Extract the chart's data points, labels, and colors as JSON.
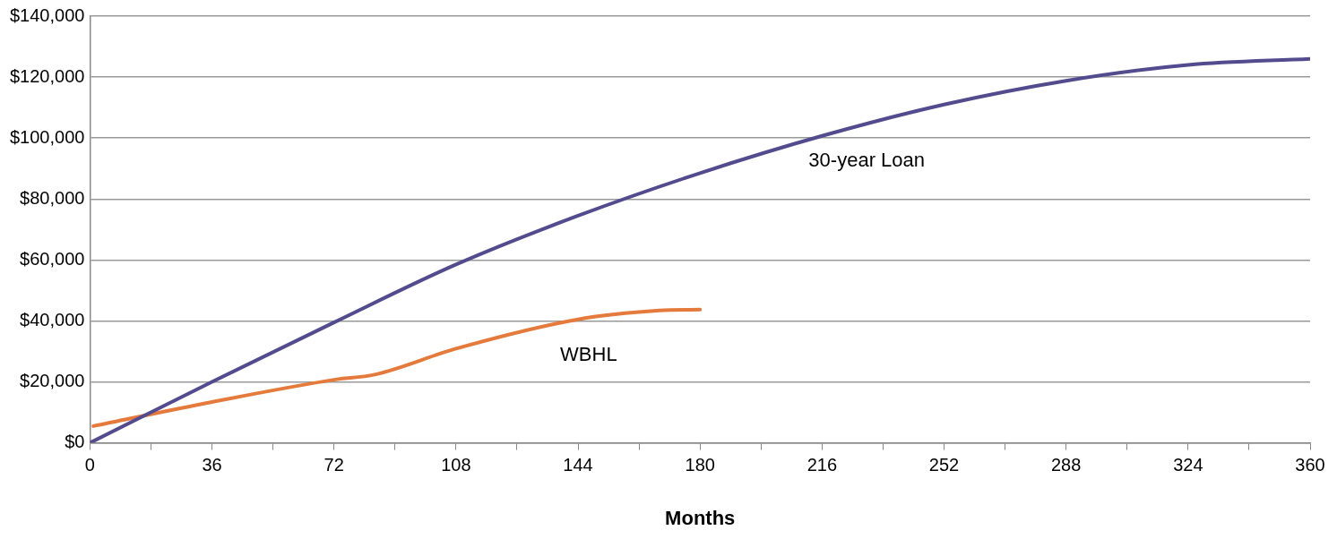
{
  "chart_data": {
    "type": "line",
    "xlabel": "Months",
    "xlim": [
      0,
      360
    ],
    "xticks": [
      0,
      {
        "value": 18,
        "label": null
      },
      36,
      {
        "value": 54,
        "label": null
      },
      72,
      {
        "value": 90,
        "label": null
      },
      108,
      {
        "value": 126,
        "label": null
      },
      144,
      {
        "value": 162,
        "label": null
      },
      180,
      {
        "value": 198,
        "label": null
      },
      216,
      {
        "value": 234,
        "label": null
      },
      252,
      {
        "value": 270,
        "label": null
      },
      288,
      {
        "value": 306,
        "label": null
      },
      324,
      {
        "value": 342,
        "label": null
      },
      360
    ],
    "ylim": [
      0,
      140000
    ],
    "yticks": [
      {
        "value": 0,
        "label": "$0"
      },
      {
        "value": 20000,
        "label": "$20,000"
      },
      {
        "value": 40000,
        "label": "$40,000"
      },
      {
        "value": 60000,
        "label": "$60,000"
      },
      {
        "value": 80000,
        "label": "$80,000"
      },
      {
        "value": 100000,
        "label": "$100,000"
      },
      {
        "value": 120000,
        "label": "$120,000"
      },
      {
        "value": 140000,
        "label": "$140,000"
      }
    ],
    "grid": "y",
    "legend": false,
    "marker": "none",
    "line_style": "solid",
    "series": [
      {
        "name": "30-year Loan",
        "color": "#524b8e",
        "x": [
          0,
          36,
          72,
          108,
          144,
          180,
          216,
          252,
          288,
          324,
          360
        ],
        "values": [
          0,
          20000,
          39500,
          58500,
          74500,
          88500,
          100700,
          111000,
          118800,
          124000,
          126000
        ]
      },
      {
        "name": "WBHL",
        "color": "#e47a3c",
        "x": [
          1,
          36,
          72,
          84,
          108,
          144,
          168,
          180
        ],
        "values": [
          5500,
          13400,
          20700,
          22400,
          30900,
          40500,
          43400,
          43700
        ]
      }
    ]
  }
}
